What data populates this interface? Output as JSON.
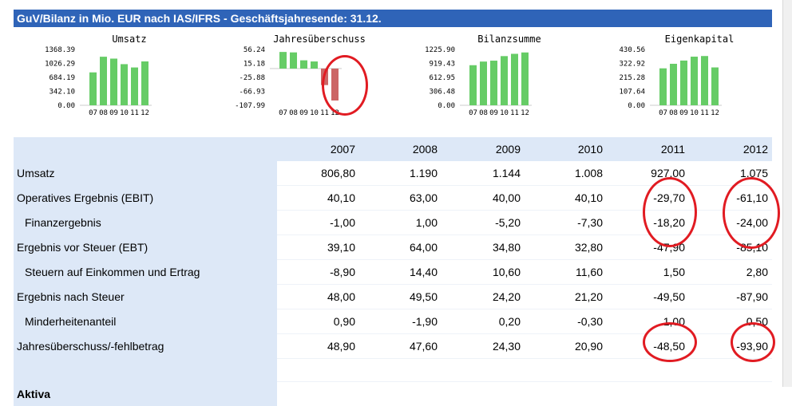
{
  "header": {
    "title": "GuV/Bilanz in Mio. EUR nach IAS/IFRS - Geschäftsjahresende: 31.12."
  },
  "colors": {
    "header_bg": "#2f64b8",
    "table_bg": "#dde8f7",
    "bar_positive": "#66cc66",
    "bar_negative": "#cc6666",
    "annotation": "#e11b22"
  },
  "chart_data": [
    {
      "type": "bar",
      "title": "Umsatz",
      "categories": [
        "07",
        "08",
        "09",
        "10",
        "11",
        "12"
      ],
      "values": [
        806.8,
        1190,
        1144,
        1008,
        927,
        1075
      ],
      "ylim": [
        0,
        1368.39
      ],
      "yticks": [
        "1368.39",
        "1026.29",
        "684.19",
        "342.10",
        "0.00"
      ]
    },
    {
      "type": "bar",
      "title": "Jahresüberschuss",
      "categories": [
        "07",
        "08",
        "09",
        "10",
        "11",
        "12"
      ],
      "values": [
        48.9,
        47.6,
        24.3,
        20.9,
        -48.5,
        -93.9
      ],
      "ylim": [
        -107.99,
        56.24
      ],
      "yticks": [
        "56.24",
        "15.18",
        "-25.88",
        "-66.93",
        "-107.99"
      ]
    },
    {
      "type": "bar",
      "title": "Bilanzsumme",
      "categories": [
        "07",
        "08",
        "09",
        "10",
        "11",
        "12"
      ],
      "values": [
        880,
        960,
        980,
        1080,
        1130,
        1160
      ],
      "ylim": [
        0,
        1225.9
      ],
      "yticks": [
        "1225.90",
        "919.43",
        "612.95",
        "306.48",
        "0.00"
      ]
    },
    {
      "type": "bar",
      "title": "Eigenkapital",
      "categories": [
        "07",
        "08",
        "09",
        "10",
        "11",
        "12"
      ],
      "values": [
        285,
        320,
        345,
        375,
        380,
        292
      ],
      "ylim": [
        0,
        430.56
      ],
      "yticks": [
        "430.56",
        "322.92",
        "215.28",
        "107.64",
        "0.00"
      ]
    }
  ],
  "table": {
    "years": [
      "2007",
      "2008",
      "2009",
      "2010",
      "2011",
      "2012"
    ],
    "rows": [
      {
        "label": "Umsatz",
        "values": [
          "806,80",
          "1.190",
          "1.144",
          "1.008",
          "927,00",
          "1.075"
        ]
      },
      {
        "label": "Operatives Ergebnis (EBIT)",
        "values": [
          "40,10",
          "63,00",
          "40,00",
          "40,10",
          "-29,70",
          "-61,10"
        ]
      },
      {
        "label": "Finanzergebnis",
        "values": [
          "-1,00",
          "1,00",
          "-5,20",
          "-7,30",
          "-18,20",
          "-24,00"
        ]
      },
      {
        "label": "Ergebnis vor Steuer (EBT)",
        "values": [
          "39,10",
          "64,00",
          "34,80",
          "32,80",
          "-47,90",
          "-85,10"
        ]
      },
      {
        "label": "Steuern auf Einkommen und Ertrag",
        "values": [
          "-8,90",
          "14,40",
          "10,60",
          "11,60",
          "1,50",
          "2,80"
        ]
      },
      {
        "label": "Ergebnis nach Steuer",
        "values": [
          "48,00",
          "49,50",
          "24,20",
          "21,20",
          "-49,50",
          "-87,90"
        ]
      },
      {
        "label": "Minderheitenanteil",
        "values": [
          "0,90",
          "-1,90",
          "0,20",
          "-0,30",
          "1,00",
          "0,50"
        ]
      },
      {
        "label": "Jahresüberschuss/-fehlbetrag",
        "values": [
          "48,90",
          "47,60",
          "24,30",
          "20,90",
          "-48,50",
          "-93,90"
        ]
      }
    ],
    "section_label": "Aktiva"
  }
}
